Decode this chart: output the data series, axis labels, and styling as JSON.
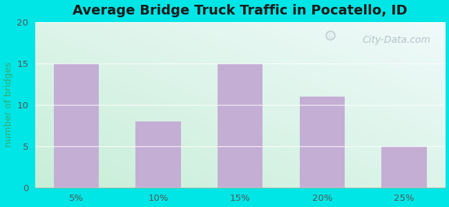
{
  "title": "Average Bridge Truck Traffic in Pocatello, ID",
  "categories": [
    "5%",
    "10%",
    "15%",
    "20%",
    "25%"
  ],
  "values": [
    15,
    8,
    15,
    11,
    5
  ],
  "bar_color": "#c4aed4",
  "ylabel": "number of bridges",
  "ylim": [
    0,
    20
  ],
  "yticks": [
    0,
    5,
    10,
    15,
    20
  ],
  "title_fontsize": 14,
  "ylabel_color": "#3aaa6a",
  "tick_label_color": "#555555",
  "background_outer": "#00e5e5",
  "background_grad_start": "#c8eed8",
  "background_grad_end": "#f0f8f8",
  "grid_color": "#c0dcc0",
  "watermark": "City-Data.com"
}
